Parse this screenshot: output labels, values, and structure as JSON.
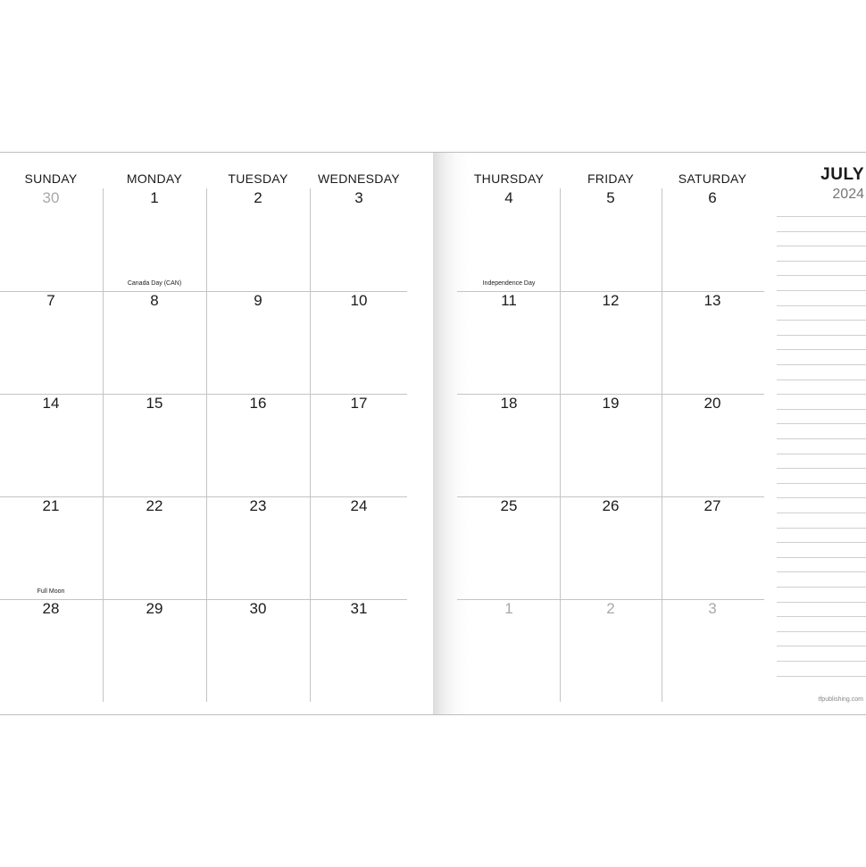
{
  "left_days": [
    "SUNDAY",
    "MONDAY",
    "TUESDAY",
    "WEDNESDAY"
  ],
  "right_days": [
    "THURSDAY",
    "FRIDAY",
    "SATURDAY"
  ],
  "weeks": [
    [
      "30",
      "1",
      "2",
      "3",
      "4",
      "5",
      "6"
    ],
    [
      "7",
      "8",
      "9",
      "10",
      "11",
      "12",
      "13"
    ],
    [
      "14",
      "15",
      "16",
      "17",
      "18",
      "19",
      "20"
    ],
    [
      "21",
      "22",
      "23",
      "24",
      "25",
      "26",
      "27"
    ],
    [
      "28",
      "29",
      "30",
      "31",
      "1",
      "2",
      "3"
    ]
  ],
  "holidays": {
    "canada_day": "Canada Day (CAN)",
    "independence_day": "Independence Day",
    "full_moon": "Full Moon"
  },
  "month": "JULY",
  "year": "2024",
  "site": "tfpublishing.com"
}
